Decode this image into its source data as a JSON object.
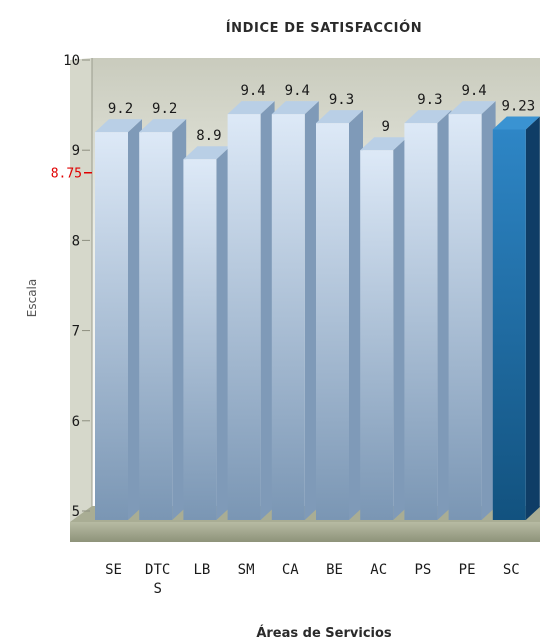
{
  "chart_data": {
    "type": "bar",
    "title": "ÍNDICE DE SATISFACCIÓN",
    "xlabel": "Áreas de Servicios",
    "ylabel": "Escala",
    "ylim": [
      4.9,
      10
    ],
    "yticks": [
      5,
      6,
      7,
      8,
      9,
      10
    ],
    "reference_line": {
      "value": 8.75,
      "label": "8.75",
      "color": "#e00000"
    },
    "categories": [
      [
        "SE"
      ],
      [
        "DTC",
        "S"
      ],
      [
        "LB"
      ],
      [
        "SM"
      ],
      [
        "CA"
      ],
      [
        "BE"
      ],
      [
        "AC"
      ],
      [
        "PS"
      ],
      [
        "PE"
      ],
      [
        "SC"
      ]
    ],
    "values": [
      9.2,
      9.2,
      8.9,
      9.4,
      9.4,
      9.3,
      9,
      9.3,
      9.4,
      9.23
    ],
    "value_labels": [
      "9.2",
      "9.2",
      "8.9",
      "9.4",
      "9.4",
      "9.3",
      "9",
      "9.3",
      "9.4",
      "9.23"
    ],
    "highlight_index": 9,
    "colors": {
      "bar_front_top": "#dde9f7",
      "bar_front_bottom": "#7a96b4",
      "bar_side": "#7f9ab8",
      "bar_top": "#b9cfe6",
      "highlight_front": "#1f74b4",
      "highlight_side": "#0f3d66",
      "highlight_top": "#3a93d2",
      "reference": "#e00000"
    },
    "grid": false,
    "legend": "none"
  }
}
